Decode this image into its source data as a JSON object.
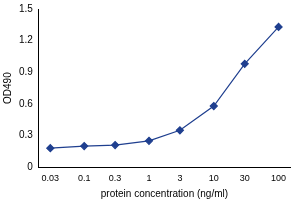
{
  "chart_data": {
    "type": "line",
    "x_label": "protein concentration (ng/ml)",
    "y_label": "OD490",
    "x": [
      0.03,
      0.1,
      0.3,
      1,
      3,
      10,
      30,
      100
    ],
    "values": [
      0.18,
      0.2,
      0.21,
      0.25,
      0.35,
      0.58,
      0.98,
      1.33
    ],
    "color": "#1f3f8f",
    "marker": "diamond",
    "line_style": "solid",
    "log": "x",
    "xlim": [
      0.02,
      150
    ],
    "xticks": [
      0.03,
      0.1,
      0.3,
      1,
      3,
      10,
      30,
      100
    ],
    "ylim": [
      0,
      1.5
    ],
    "yticks": [
      0,
      0.3,
      0.6,
      0.9,
      1.2,
      1.5
    ],
    "grid": false
  }
}
